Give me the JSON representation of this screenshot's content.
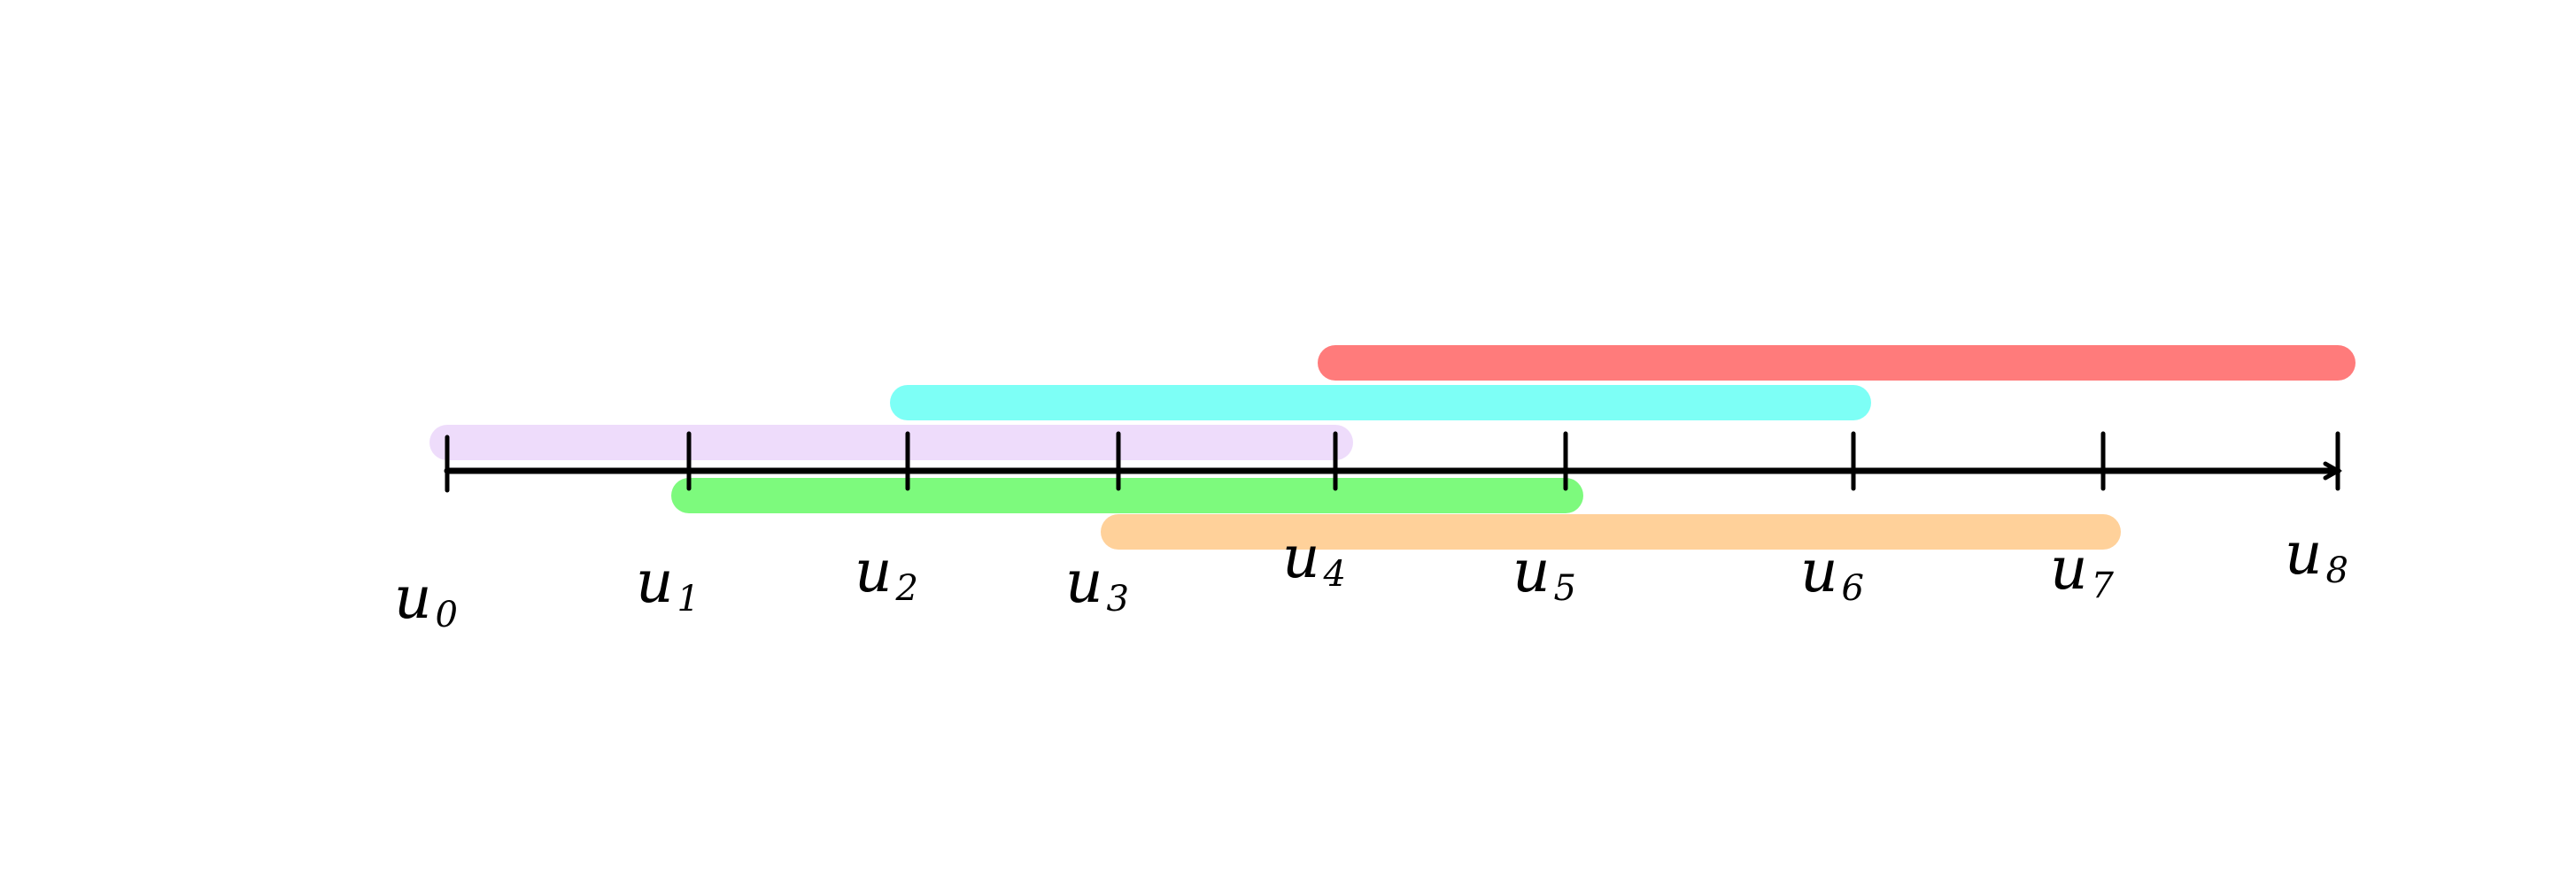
{
  "title": "",
  "axis": {
    "range": [
      0,
      8
    ]
  },
  "knots": [
    {
      "id": "u0",
      "base": "u",
      "sub": "0",
      "value": 0
    },
    {
      "id": "u1",
      "base": "u",
      "sub": "1",
      "value": 1
    },
    {
      "id": "u2",
      "base": "u",
      "sub": "2",
      "value": 2
    },
    {
      "id": "u3",
      "base": "u",
      "sub": "3",
      "value": 3
    },
    {
      "id": "u4",
      "base": "u",
      "sub": "4",
      "value": 4
    },
    {
      "id": "u5",
      "base": "u",
      "sub": "5",
      "value": 5
    },
    {
      "id": "u6",
      "base": "u",
      "sub": "6",
      "value": 6
    },
    {
      "id": "u7",
      "base": "u",
      "sub": "7",
      "value": 7
    },
    {
      "id": "u8",
      "base": "u",
      "sub": "8",
      "value": 8
    }
  ],
  "intervals": [
    {
      "id": "interval-red",
      "start": 4,
      "end": 8,
      "level": 3,
      "color": "#ff7b7b"
    },
    {
      "id": "interval-cyan",
      "start": 2,
      "end": 6,
      "level": 2,
      "color": "#7dfff6"
    },
    {
      "id": "interval-purple",
      "start": 0,
      "end": 4,
      "level": 1,
      "color": "#eedcfb"
    },
    {
      "id": "interval-green",
      "start": 1,
      "end": 5,
      "level": -1,
      "color": "#7dfa7d"
    },
    {
      "id": "interval-orange",
      "start": 3,
      "end": 7,
      "level": -2,
      "color": "#ffd19a"
    }
  ]
}
